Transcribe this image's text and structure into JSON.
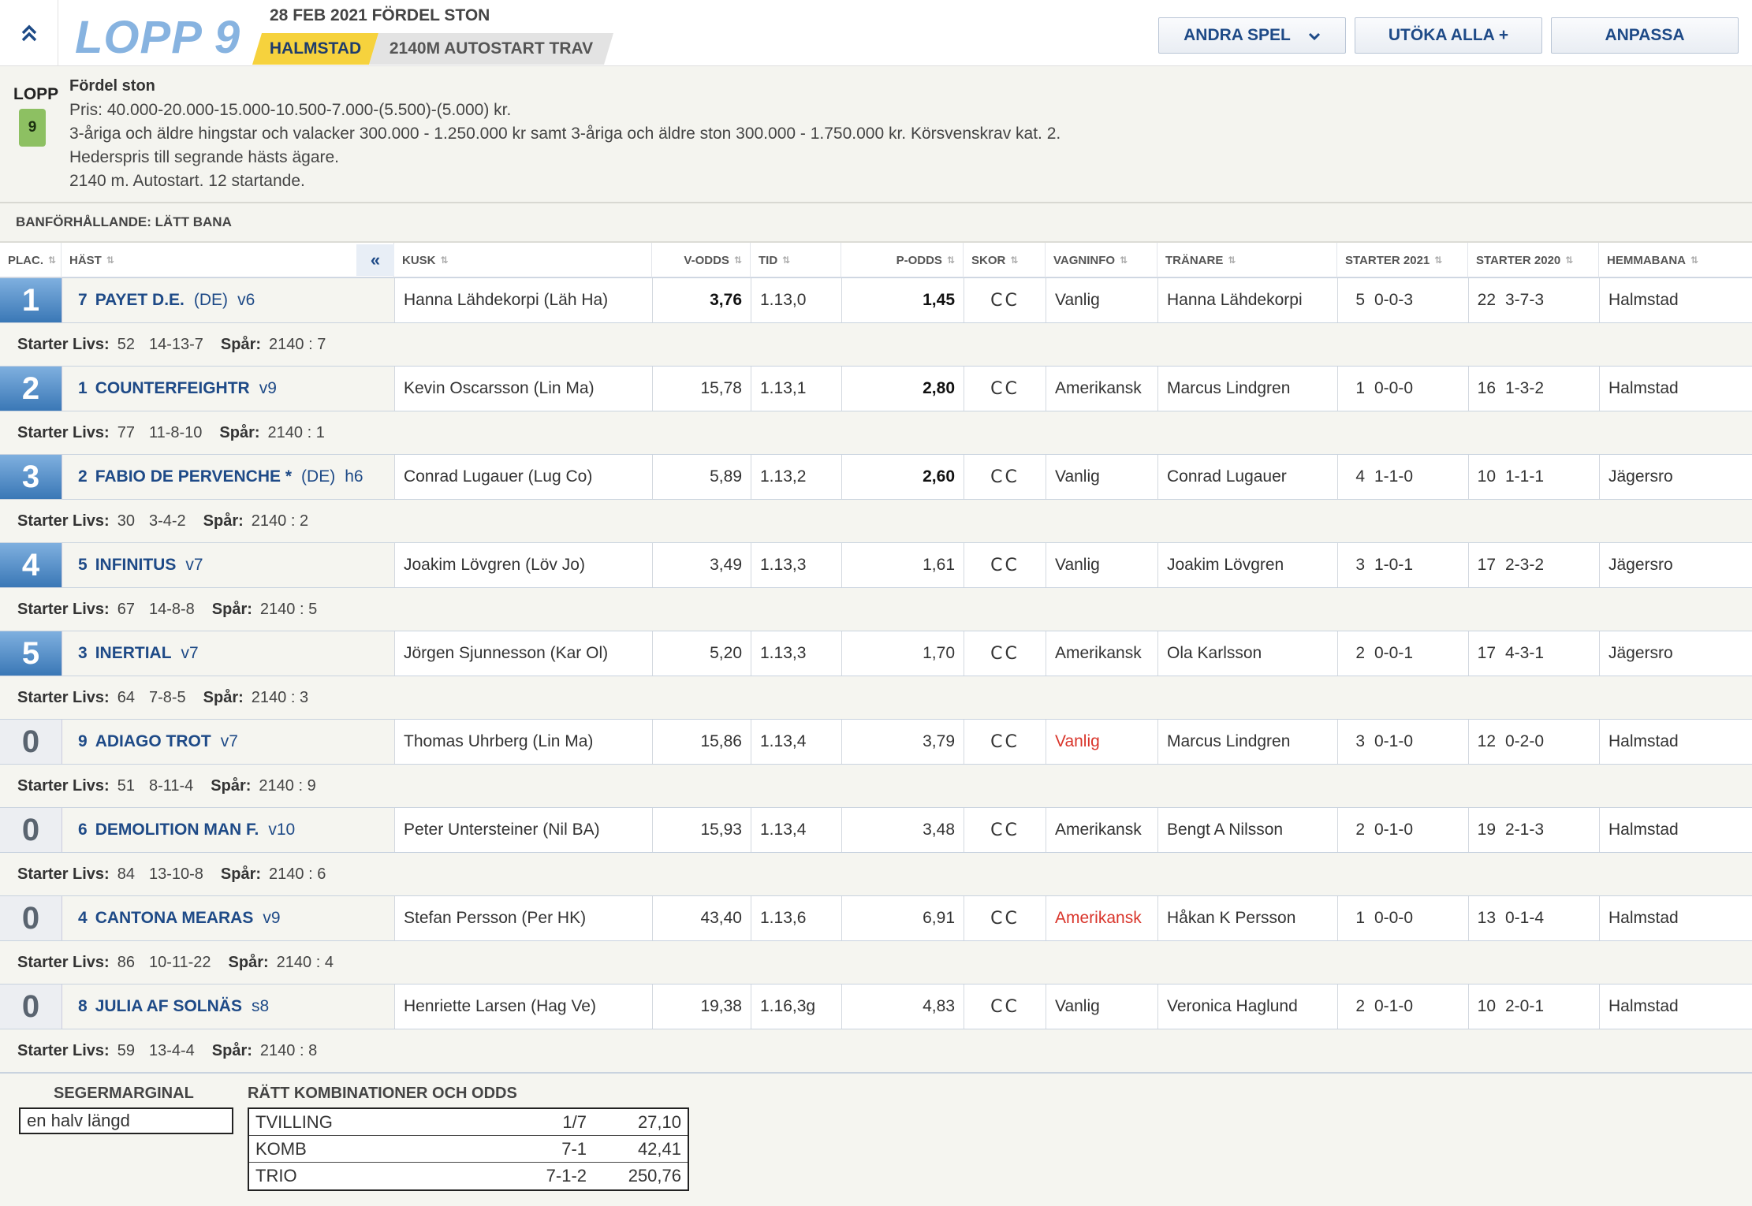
{
  "header": {
    "collapse_icon": "double-chevron-up-icon",
    "title": "LOPP 9",
    "date_line": "28 FEB 2021 FÖRDEL STON",
    "track": "HALMSTAD",
    "distance": "2140M AUTOSTART TRAV",
    "buttons": {
      "andra_spel": "ANDRA SPEL",
      "utoka_alla": "UTÖKA ALLA +",
      "anpassa": "ANPASSA"
    }
  },
  "race": {
    "lopp_label": "LOPP",
    "lopp_number": "9",
    "name": "Fördel ston",
    "lines": [
      "Pris: 40.000-20.000-15.000-10.500-7.000-(5.500)-(5.000) kr.",
      "3-åriga och äldre hingstar och valacker 300.000 - 1.250.000 kr samt 3-åriga och äldre ston 300.000 - 1.750.000 kr. Körsvenskrav kat. 2.",
      "Hederspris till segrande hästs ägare.",
      "2140 m. Autostart. 12 startande."
    ],
    "conditions": "BANFÖRHÅLLANDE: LÄTT BANA"
  },
  "columns": {
    "plac": "PLAC.",
    "hast": "HÄST",
    "kusk": "KUSK",
    "v_odds": "V-ODDS",
    "tid": "TID",
    "p_odds": "P-ODDS",
    "skor": "SKOR",
    "vagninfo": "VAGNINFO",
    "tranare": "TRÄNARE",
    "starter_2021": "STARTER 2021",
    "starter_2020": "STARTER 2020",
    "hemmabana": "HEMMABANA",
    "collapse": "«"
  },
  "labels": {
    "starter_livs": "Starter Livs:",
    "spar": "Spår:"
  },
  "entries": [
    {
      "plac": "1",
      "num": "7",
      "name": "PAYET D.E.",
      "origin": "(DE)",
      "age": "v6",
      "kusk": "Hanna Lähdekorpi (Läh Ha)",
      "v_odds": "3,76",
      "tid": "1.13,0",
      "p_odds": "1,45",
      "skor": "CC",
      "vagn": "Vanlig",
      "tranare": "Hanna Lähdekorpi",
      "s21n": "5",
      "s21r": "0-0-3",
      "s20n": "22",
      "s20r": "3-7-3",
      "hemma": "Halmstad",
      "livs_n": "52",
      "livs_r": "14-13-7",
      "spar": "2140 : 7"
    },
    {
      "plac": "2",
      "num": "1",
      "name": "COUNTERFEIGHTR",
      "origin": "",
      "age": "v9",
      "kusk": "Kevin Oscarsson (Lin Ma)",
      "v_odds": "15,78",
      "tid": "1.13,1",
      "p_odds": "2,80",
      "skor": "CC",
      "vagn": "Amerikansk",
      "tranare": "Marcus Lindgren",
      "s21n": "1",
      "s21r": "0-0-0",
      "s20n": "16",
      "s20r": "1-3-2",
      "hemma": "Halmstad",
      "livs_n": "77",
      "livs_r": "11-8-10",
      "spar": "2140 : 1"
    },
    {
      "plac": "3",
      "num": "2",
      "name": "FABIO DE PERVENCHE *",
      "origin": "(DE)",
      "age": "h6",
      "kusk": "Conrad Lugauer (Lug Co)",
      "v_odds": "5,89",
      "tid": "1.13,2",
      "p_odds": "2,60",
      "skor": "CC",
      "vagn": "Vanlig",
      "tranare": "Conrad Lugauer",
      "s21n": "4",
      "s21r": "1-1-0",
      "s20n": "10",
      "s20r": "1-1-1",
      "hemma": "Jägersro",
      "livs_n": "30",
      "livs_r": "3-4-2",
      "spar": "2140 : 2"
    },
    {
      "plac": "4",
      "num": "5",
      "name": "INFINITUS",
      "origin": "",
      "age": "v7",
      "kusk": "Joakim Lövgren (Löv Jo)",
      "v_odds": "3,49",
      "tid": "1.13,3",
      "p_odds": "1,61",
      "skor": "CC",
      "vagn": "Vanlig",
      "tranare": "Joakim Lövgren",
      "s21n": "3",
      "s21r": "1-0-1",
      "s20n": "17",
      "s20r": "2-3-2",
      "hemma": "Jägersro",
      "livs_n": "67",
      "livs_r": "14-8-8",
      "spar": "2140 : 5"
    },
    {
      "plac": "5",
      "num": "3",
      "name": "INERTIAL",
      "origin": "",
      "age": "v7",
      "kusk": "Jörgen Sjunnesson (Kar Ol)",
      "v_odds": "5,20",
      "tid": "1.13,3",
      "p_odds": "1,70",
      "skor": "CC",
      "vagn": "Amerikansk",
      "tranare": "Ola Karlsson",
      "s21n": "2",
      "s21r": "0-0-1",
      "s20n": "17",
      "s20r": "4-3-1",
      "hemma": "Jägersro",
      "livs_n": "64",
      "livs_r": "7-8-5",
      "spar": "2140 : 3"
    },
    {
      "plac": "0",
      "num": "9",
      "name": "ADIAGO TROT",
      "origin": "",
      "age": "v7",
      "kusk": "Thomas Uhrberg (Lin Ma)",
      "v_odds": "15,86",
      "tid": "1.13,4",
      "p_odds": "3,79",
      "skor": "CC",
      "vagn": "Vanlig",
      "tranare": "Marcus Lindgren",
      "s21n": "3",
      "s21r": "0-1-0",
      "s20n": "12",
      "s20r": "0-2-0",
      "hemma": "Halmstad",
      "livs_n": "51",
      "livs_r": "8-11-4",
      "spar": "2140 : 9"
    },
    {
      "plac": "0",
      "num": "6",
      "name": "DEMOLITION MAN F.",
      "origin": "",
      "age": "v10",
      "kusk": "Peter Untersteiner (Nil BA)",
      "v_odds": "15,93",
      "tid": "1.13,4",
      "p_odds": "3,48",
      "skor": "CC",
      "vagn": "Amerikansk",
      "tranare": "Bengt A Nilsson",
      "s21n": "2",
      "s21r": "0-1-0",
      "s20n": "19",
      "s20r": "2-1-3",
      "hemma": "Halmstad",
      "livs_n": "84",
      "livs_r": "13-10-8",
      "spar": "2140 : 6"
    },
    {
      "plac": "0",
      "num": "4",
      "name": "CANTONA MEARAS",
      "origin": "",
      "age": "v9",
      "kusk": "Stefan Persson (Per HK)",
      "v_odds": "43,40",
      "tid": "1.13,6",
      "p_odds": "6,91",
      "skor": "CC",
      "vagn": "Amerikansk",
      "tranare": "Håkan K Persson",
      "s21n": "1",
      "s21r": "0-0-0",
      "s20n": "13",
      "s20r": "0-1-4",
      "hemma": "Halmstad",
      "livs_n": "86",
      "livs_r": "10-11-22",
      "spar": "2140 : 4"
    },
    {
      "plac": "0",
      "num": "8",
      "name": "JULIA AF SOLNÄS",
      "origin": "",
      "age": "s8",
      "kusk": "Henriette Larsen (Hag Ve)",
      "v_odds": "19,38",
      "tid": "1.16,3g",
      "p_odds": "4,83",
      "skor": "CC",
      "vagn": "Vanlig",
      "tranare": "Veronica Haglund",
      "s21n": "2",
      "s21r": "0-1-0",
      "s20n": "10",
      "s20r": "2-0-1",
      "hemma": "Halmstad",
      "livs_n": "59",
      "livs_r": "13-4-4",
      "spar": "2140 : 8"
    }
  ],
  "footer": {
    "segermarginal_title": "SEGERMARGINAL",
    "segermarginal_value": "en halv längd",
    "comb_title": "RÄTT KOMBINATIONER OCH ODDS",
    "combinations": [
      {
        "type": "TVILLING",
        "combo": "1/7",
        "odds": "27,10"
      },
      {
        "type": "KOMB",
        "combo": "7-1",
        "odds": "42,41"
      },
      {
        "type": "TRIO",
        "combo": "7-1-2",
        "odds": "250,76"
      }
    ]
  },
  "colors": {
    "accent_blue": "#1e4a87",
    "title_blue": "#87b3e0",
    "track_yellow": "#f6d23d",
    "badge_green": "#8dc062",
    "warning_red": "#d9352b"
  }
}
